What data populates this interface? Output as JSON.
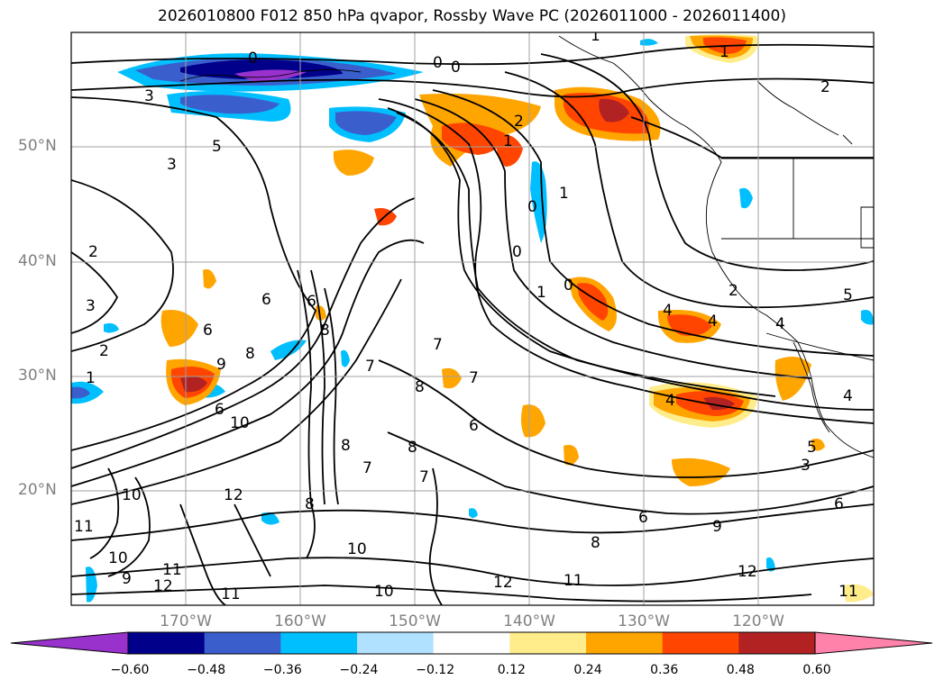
{
  "title": "2026010800 F012 850 hPa qvapor, Rossby Wave PC (2026011000 - 2026011400)",
  "lat_labels": [
    "50°N",
    "40°N",
    "30°N",
    "20°N"
  ],
  "lon_labels": [
    "170°W",
    "160°W",
    "150°W",
    "140°W",
    "130°W",
    "120°W"
  ],
  "colorbar": {
    "ticks": [
      "−0.60",
      "−0.48",
      "−0.36",
      "−0.24",
      "−0.12",
      "0.12",
      "0.24",
      "0.36",
      "0.48",
      "0.60"
    ],
    "colors": [
      "#9932cc",
      "#00008b",
      "#3a5fcd",
      "#00bfff",
      "#b0e2ff",
      "#ffffff",
      "#ffec8b",
      "#ffa500",
      "#ff4500",
      "#b22222",
      "#ff82ab"
    ]
  },
  "contour_labels": [
    "0",
    "1",
    "2",
    "3",
    "4",
    "5",
    "6",
    "7",
    "8",
    "9",
    "10",
    "11",
    "12"
  ]
}
